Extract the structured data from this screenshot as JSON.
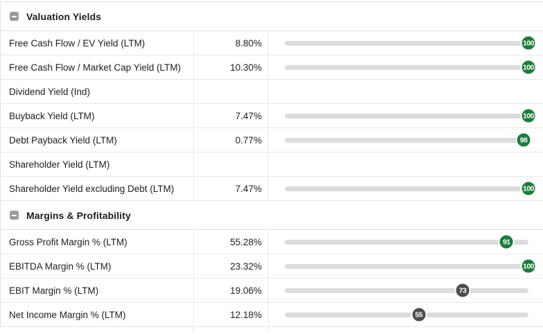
{
  "colors": {
    "badge_green": "#1b7d3b",
    "badge_gray": "#4d4d4d",
    "track": "#dcdcdc",
    "border": "#e7e7e7",
    "text": "#1d1d1d",
    "collapse_icon_gray": "#9b9b9b"
  },
  "icons": {
    "collapse": "minus-square-icon"
  },
  "sections": [
    {
      "title": "Valuation Yields",
      "rows": [
        {
          "label": "Free Cash Flow / EV Yield (LTM)",
          "value": "8.80%",
          "score": 100,
          "score_color": "green"
        },
        {
          "label": "Free Cash Flow / Market Cap Yield (LTM)",
          "value": "10.30%",
          "score": 100,
          "score_color": "green"
        },
        {
          "label": "Dividend Yield (Ind)",
          "value": "",
          "score": null,
          "score_color": null
        },
        {
          "label": "Buyback Yield (LTM)",
          "value": "7.47%",
          "score": 100,
          "score_color": "green"
        },
        {
          "label": "Debt Payback Yield (LTM)",
          "value": "0.77%",
          "score": 98,
          "score_color": "green"
        },
        {
          "label": "Shareholder Yield (LTM)",
          "value": "",
          "score": null,
          "score_color": null
        },
        {
          "label": "Shareholder Yield excluding Debt (LTM)",
          "value": "7.47%",
          "score": 100,
          "score_color": "green"
        }
      ]
    },
    {
      "title": "Margins & Profitability",
      "rows": [
        {
          "label": "Gross Profit Margin % (LTM)",
          "value": "55.28%",
          "score": 91,
          "score_color": "green"
        },
        {
          "label": "EBITDA Margin % (LTM)",
          "value": "23.32%",
          "score": 100,
          "score_color": "green"
        },
        {
          "label": "EBIT Margin % (LTM)",
          "value": "19.06%",
          "score": 73,
          "score_color": "gray"
        },
        {
          "label": "Net Income Margin % (LTM)",
          "value": "12.18%",
          "score": 55,
          "score_color": "gray"
        }
      ]
    }
  ]
}
